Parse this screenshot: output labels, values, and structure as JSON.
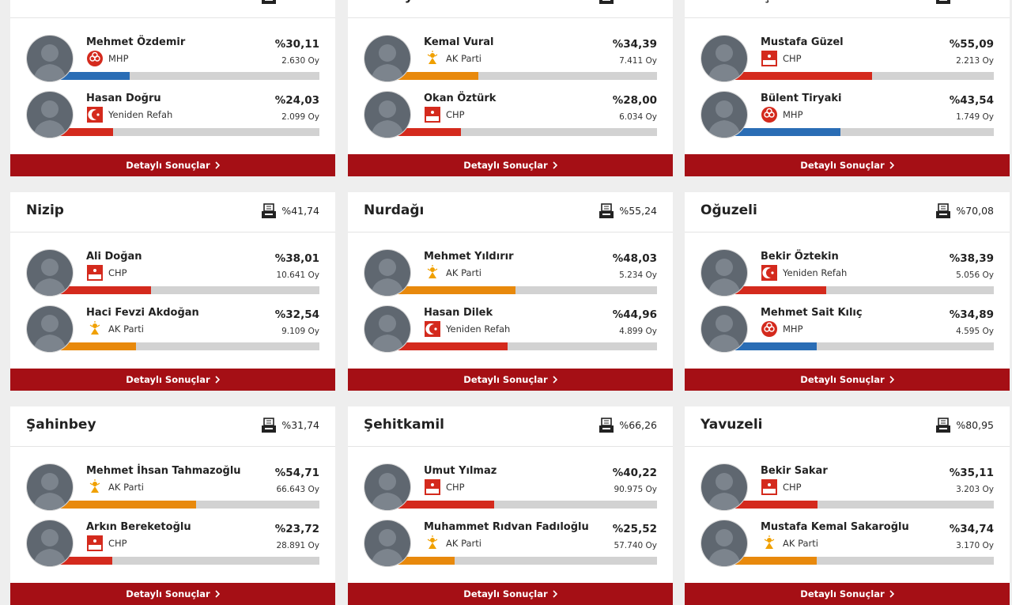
{
  "button": "Detaylı Sonuçlar",
  "cards": [
    {
      "title": "Araban",
      "candidates": [
        {
          "name": "Mehmet Özdemir",
          "party": "MHP",
          "color": "#2a6db5",
          "percent": {
            "value": 30.11,
            "label": "%30,11"
          },
          "votes": "2.630 Oy"
        },
        {
          "name": "Hasan Doğru",
          "party": "Yeniden Refah",
          "color": "#d42a1d",
          "percent": {
            "value": 24.03,
            "label": "%24,03"
          },
          "votes": "2.099 Oy"
        }
      ]
    },
    {
      "title": "İslahiye",
      "candidates": [
        {
          "name": "Kemal Vural",
          "party": "AK Parti",
          "color": "#e8890c",
          "percent": {
            "value": 34.39,
            "label": "%34,39"
          },
          "votes": "7.411 Oy"
        },
        {
          "name": "Okan Öztürk",
          "party": "CHP",
          "color": "#d42a1d",
          "percent": {
            "value": 28.0,
            "label": "%28,00"
          },
          "votes": "6.034 Oy"
        }
      ]
    },
    {
      "title": "Karkamış",
      "candidates": [
        {
          "name": "Mustafa Güzel",
          "party": "CHP",
          "color": "#d42a1d",
          "percent": {
            "value": 55.09,
            "label": "%55,09"
          },
          "votes": "2.213 Oy"
        },
        {
          "name": "Bülent Tiryaki",
          "party": "MHP",
          "color": "#2a6db5",
          "percent": {
            "value": 43.54,
            "label": "%43,54"
          },
          "votes": "1.749 Oy"
        }
      ]
    },
    {
      "title": "Nizip",
      "turnout": "%41,74",
      "candidates": [
        {
          "name": "Ali Doğan",
          "party": "CHP",
          "color": "#d42a1d",
          "percent": {
            "value": 38.01,
            "label": "%38,01"
          },
          "votes": "10.641 Oy"
        },
        {
          "name": "Haci Fevzi Akdoğan",
          "party": "AK Parti",
          "color": "#e8890c",
          "percent": {
            "value": 32.54,
            "label": "%32,54"
          },
          "votes": "9.109 Oy"
        }
      ]
    },
    {
      "title": "Nurdağı",
      "turnout": "%55,24",
      "candidates": [
        {
          "name": "Mehmet Yıldırır",
          "party": "AK Parti",
          "color": "#e8890c",
          "percent": {
            "value": 48.03,
            "label": "%48,03"
          },
          "votes": "5.234 Oy"
        },
        {
          "name": "Hasan Dilek",
          "party": "Yeniden Refah",
          "color": "#d42a1d",
          "percent": {
            "value": 44.96,
            "label": "%44,96"
          },
          "votes": "4.899 Oy"
        }
      ]
    },
    {
      "title": "Oğuzeli",
      "turnout": "%70,08",
      "candidates": [
        {
          "name": "Bekir Öztekin",
          "party": "Yeniden Refah",
          "color": "#d42a1d",
          "percent": {
            "value": 38.39,
            "label": "%38,39"
          },
          "votes": "5.056 Oy"
        },
        {
          "name": "Mehmet Sait Kılıç",
          "party": "MHP",
          "color": "#2a6db5",
          "percent": {
            "value": 34.89,
            "label": "%34,89"
          },
          "votes": "4.595 Oy"
        }
      ]
    },
    {
      "title": "Şahinbey",
      "turnout": "%31,74",
      "candidates": [
        {
          "name": "Mehmet İhsan Tahmazoğlu",
          "party": "AK Parti",
          "color": "#e8890c",
          "percent": {
            "value": 54.71,
            "label": "%54,71"
          },
          "votes": "66.643 Oy"
        },
        {
          "name": "Arkın Bereketoğlu",
          "party": "CHP",
          "color": "#d42a1d",
          "percent": {
            "value": 23.72,
            "label": "%23,72"
          },
          "votes": "28.891 Oy"
        }
      ]
    },
    {
      "title": "Şehitkamil",
      "turnout": "%66,26",
      "candidates": [
        {
          "name": "Umut Yılmaz",
          "party": "CHP",
          "color": "#d42a1d",
          "percent": {
            "value": 40.22,
            "label": "%40,22"
          },
          "votes": "90.975 Oy"
        },
        {
          "name": "Muhammet Rıdvan Fadıloğlu",
          "party": "AK Parti",
          "color": "#e8890c",
          "percent": {
            "value": 25.52,
            "label": "%25,52"
          },
          "votes": "57.740 Oy"
        }
      ]
    },
    {
      "title": "Yavuzeli",
      "turnout": "%80,95",
      "candidates": [
        {
          "name": "Bekir Sakar",
          "party": "CHP",
          "color": "#d42a1d",
          "percent": {
            "value": 35.11,
            "label": "%35,11"
          },
          "votes": "3.203 Oy"
        },
        {
          "name": "Mustafa Kemal Sakaroğlu",
          "party": "AK Parti",
          "color": "#e8890c",
          "percent": {
            "value": 34.74,
            "label": "%34,74"
          },
          "votes": "3.170 Oy"
        }
      ]
    }
  ]
}
